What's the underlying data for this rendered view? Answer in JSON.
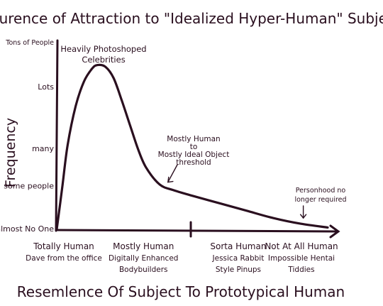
{
  "chart_data": {
    "type": "line",
    "title": "Occurence of Attraction to \"Idealized Hyper-Human\" Subjects",
    "xlabel": "Resemlence Of Subject To Prototypical Human",
    "ylabel": "Frequency",
    "x_range": [
      0,
      100
    ],
    "y_range": [
      0,
      100
    ],
    "y_tick_labels": [
      {
        "label": "Tons of People",
        "value": 100
      },
      {
        "label": "Lots",
        "value": 76
      },
      {
        "label": "many",
        "value": 43
      },
      {
        "label": "some people",
        "value": 23
      },
      {
        "label": "almost No One",
        "value": 0
      }
    ],
    "x_tick_labels": [
      {
        "lines": [
          "Totally Human",
          "Dave from the office"
        ],
        "value": 0
      },
      {
        "lines": [
          "Mostly Human",
          "Digitally Enhanced",
          "Bodybuilders"
        ],
        "value": 32
      },
      {
        "lines": [
          "Sorta Human",
          "Jessica Rabbit",
          "Style Pinups"
        ],
        "value": 67
      },
      {
        "lines": [
          "Not At All Human",
          "Impossible Hentai",
          "Tiddies"
        ],
        "value": 96
      }
    ],
    "x_tick_marks": [
      50
    ],
    "series": [
      {
        "points": [
          [
            0,
            0
          ],
          [
            2,
            22
          ],
          [
            4,
            45
          ],
          [
            7,
            66
          ],
          [
            10,
            79
          ],
          [
            13,
            86
          ],
          [
            15,
            88
          ],
          [
            18,
            87
          ],
          [
            21,
            81
          ],
          [
            24,
            69
          ],
          [
            27,
            56
          ],
          [
            30,
            43
          ],
          [
            33,
            33
          ],
          [
            38,
            24
          ],
          [
            43,
            21
          ],
          [
            50,
            18
          ],
          [
            60,
            14
          ],
          [
            70,
            10
          ],
          [
            80,
            6
          ],
          [
            90,
            3
          ],
          [
            100,
            1
          ]
        ]
      }
    ],
    "annotations": [
      {
        "lines": [
          "Heavily Photoshoped",
          "Celebrities"
        ]
      },
      {
        "lines": [
          "Mostly Human",
          "to",
          "Mostly Ideal Object",
          "threshold"
        ],
        "arrow_to": [
          40,
          23
        ]
      },
      {
        "lines": [
          "Personhood no",
          "longer required"
        ],
        "arrow_to": [
          91,
          3
        ]
      }
    ]
  }
}
